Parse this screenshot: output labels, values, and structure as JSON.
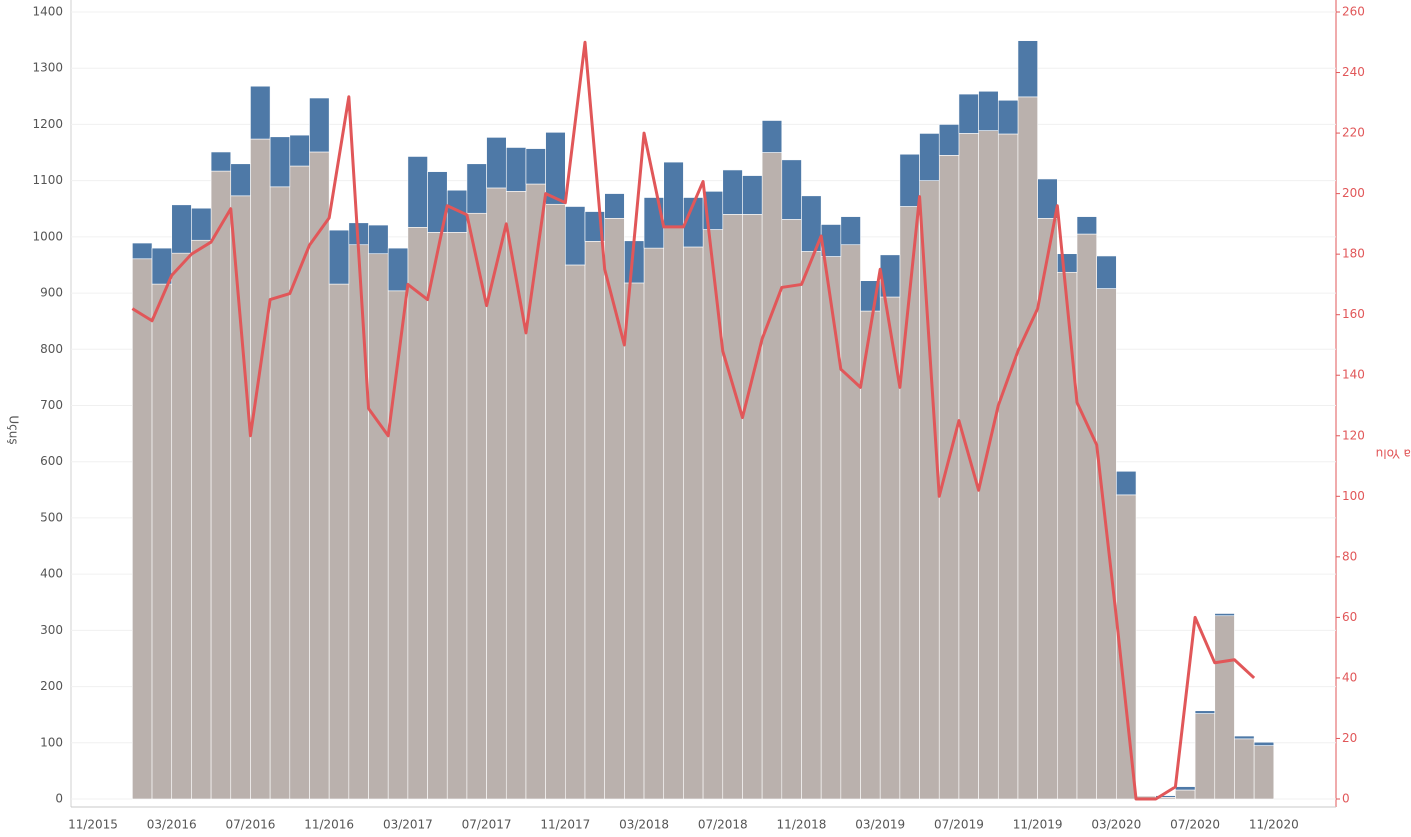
{
  "chart_data": {
    "type": "bar",
    "y_label": "Uçuş",
    "y2_label": "Hava Yolu",
    "categories": [
      "11/2015",
      null,
      null,
      null,
      "03/2016",
      null,
      null,
      null,
      "07/2016",
      null,
      null,
      null,
      "11/2016",
      null,
      null,
      null,
      "03/2017",
      null,
      null,
      null,
      "07/2017",
      null,
      null,
      null,
      "11/2017",
      null,
      null,
      null,
      "03/2018",
      null,
      null,
      null,
      "07/2018",
      null,
      null,
      null,
      "11/2018",
      null,
      null,
      null,
      "03/2019",
      null,
      null,
      null,
      "07/2019",
      null,
      null,
      null,
      "11/2019",
      null,
      null,
      null,
      "03/2020",
      null,
      null,
      null,
      "07/2020",
      null,
      null,
      null,
      "11/2020"
    ],
    "series": [
      {
        "type": "bar",
        "color": "#bab1ad",
        "values": [
          null,
          null,
          961,
          916,
          971,
          994,
          1117,
          1073,
          1174,
          1089,
          1126,
          1151,
          916,
          986,
          970,
          904,
          1017,
          1008,
          1008,
          1042,
          1087,
          1081,
          1094,
          1058,
          950,
          992,
          1033,
          918,
          980,
          1019,
          982,
          1013,
          1040,
          1040,
          1150,
          1031,
          974,
          965,
          986,
          868,
          893,
          1054,
          1100,
          1145,
          1184,
          1189,
          1183,
          1249,
          1033,
          937,
          1005,
          908,
          541,
          5,
          3,
          16,
          152,
          326,
          107,
          95,
          null
        ]
      },
      {
        "type": "bar",
        "color": "#4e79a7",
        "values": [
          null,
          null,
          28,
          64,
          86,
          57,
          34,
          57,
          94,
          89,
          55,
          96,
          96,
          39,
          51,
          76,
          126,
          108,
          75,
          88,
          90,
          78,
          63,
          128,
          104,
          53,
          44,
          75,
          90,
          114,
          88,
          68,
          79,
          69,
          57,
          106,
          99,
          57,
          50,
          54,
          75,
          93,
          84,
          55,
          70,
          70,
          60,
          100,
          70,
          33,
          31,
          58,
          42,
          0,
          3,
          6,
          5,
          4,
          5,
          6,
          null
        ]
      },
      {
        "type": "line",
        "axis": "y2",
        "color": "#e15759",
        "values": [
          null,
          null,
          162,
          158,
          173,
          180,
          184,
          195,
          120,
          165,
          167,
          183,
          192,
          232,
          129,
          120,
          170,
          165,
          196,
          193,
          163,
          190,
          154,
          200,
          197,
          250,
          175,
          150,
          220,
          189,
          189,
          204,
          148,
          126,
          152,
          169,
          170,
          186,
          142,
          136,
          175,
          136,
          199,
          100,
          125,
          102,
          130,
          148,
          162,
          196,
          131,
          117,
          60,
          0,
          0,
          4,
          60,
          45,
          46,
          40,
          null
        ]
      }
    ],
    "ylim": [
      0,
      1400
    ],
    "yticks": [
      0,
      100,
      200,
      300,
      400,
      500,
      600,
      700,
      800,
      900,
      1000,
      1100,
      1200,
      1300,
      1400
    ],
    "y2lim": [
      0,
      260
    ],
    "y2ticks": [
      0,
      20,
      40,
      60,
      80,
      100,
      120,
      140,
      160,
      180,
      200,
      220,
      240,
      260
    ],
    "grid": true
  }
}
